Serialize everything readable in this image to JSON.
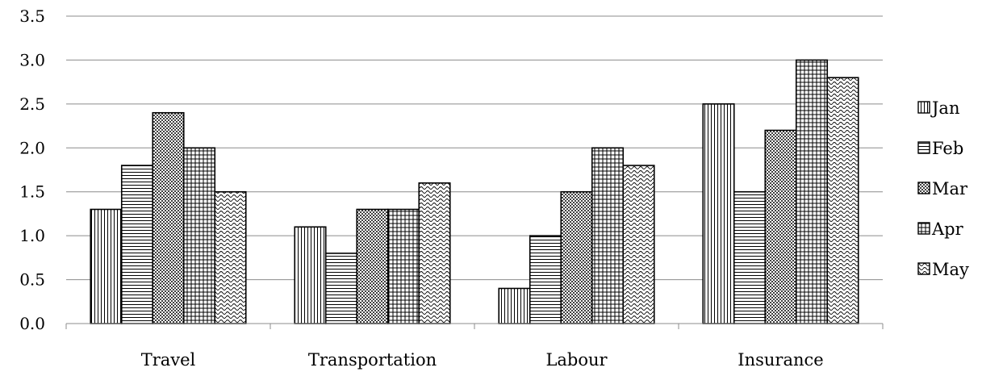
{
  "chart_data": {
    "type": "bar",
    "title": "",
    "xlabel": "",
    "ylabel": "",
    "categories": [
      "Travel",
      "Transportation",
      "Labour",
      "Insurance"
    ],
    "series": [
      {
        "name": "Jan",
        "values": [
          1.3,
          1.1,
          0.4,
          2.5
        ],
        "pattern": "vertical-lines"
      },
      {
        "name": "Feb",
        "values": [
          1.8,
          0.8,
          1.0,
          1.5
        ],
        "pattern": "horizontal-lines"
      },
      {
        "name": "Mar",
        "values": [
          2.4,
          1.3,
          1.5,
          2.2
        ],
        "pattern": "checker"
      },
      {
        "name": "Apr",
        "values": [
          2.0,
          1.3,
          2.0,
          3.0
        ],
        "pattern": "grid"
      },
      {
        "name": "May",
        "values": [
          1.5,
          1.6,
          1.8,
          2.8
        ],
        "pattern": "waves"
      }
    ],
    "ylim": [
      0,
      3.5
    ],
    "yticks": [
      "0.0",
      "0.5",
      "1.0",
      "1.5",
      "2.0",
      "2.5",
      "3.0",
      "3.5"
    ],
    "ytick_values": [
      0,
      0.5,
      1.0,
      1.5,
      2.0,
      2.5,
      3.0,
      3.5
    ],
    "grid": true,
    "legend_position": "right",
    "colors": {
      "bar_stroke": "#000000",
      "pattern_ink": "#000000",
      "gridline": "#8c8c8c",
      "background": "#ffffff"
    }
  }
}
